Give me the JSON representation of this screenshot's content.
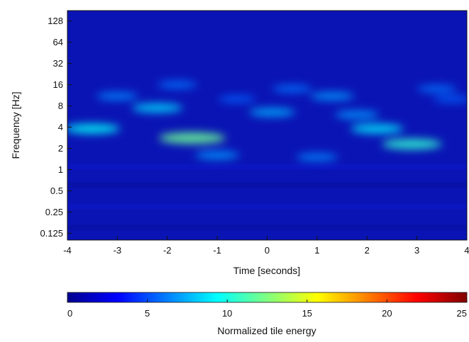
{
  "chart_data": {
    "type": "heatmap",
    "title": "",
    "xlabel": "Time [seconds]",
    "ylabel": "Frequency [Hz]",
    "xlim": [
      -4,
      4
    ],
    "ylim": [
      0.1,
      180
    ],
    "yscale": "log2",
    "x_ticks": [
      -4,
      -3,
      -2,
      -1,
      0,
      1,
      2,
      3,
      4
    ],
    "x_tick_labels": [
      "-4",
      "-3",
      "-2",
      "-1",
      "0",
      "1",
      "2",
      "3",
      "4"
    ],
    "y_ticks": [
      0.125,
      0.25,
      0.5,
      1,
      2,
      4,
      8,
      16,
      32,
      64,
      128
    ],
    "y_tick_labels": [
      "0.125",
      "0.25",
      "0.5",
      "1",
      "2",
      "4",
      "8",
      "16",
      "32",
      "64",
      "128"
    ],
    "background_energy": 0.6,
    "features": [
      {
        "t": -3.5,
        "f": 3.8,
        "energy": 6.5
      },
      {
        "t": -3.0,
        "f": 11,
        "energy": 3.5
      },
      {
        "t": -2.2,
        "f": 7.5,
        "energy": 5.5
      },
      {
        "t": -1.5,
        "f": 2.8,
        "energy": 9
      },
      {
        "t": -1.8,
        "f": 16,
        "energy": 3
      },
      {
        "t": -0.6,
        "f": 10,
        "energy": 2.5
      },
      {
        "t": 0.1,
        "f": 6.5,
        "energy": 4.5
      },
      {
        "t": 0.5,
        "f": 14,
        "energy": 3
      },
      {
        "t": 1.3,
        "f": 11,
        "energy": 4
      },
      {
        "t": 1.8,
        "f": 6,
        "energy": 4
      },
      {
        "t": 2.2,
        "f": 3.8,
        "energy": 6
      },
      {
        "t": 2.9,
        "f": 2.3,
        "energy": 7.5
      },
      {
        "t": 3.4,
        "f": 14,
        "energy": 3
      },
      {
        "t": 3.7,
        "f": 10,
        "energy": 2.5
      },
      {
        "t": -1.0,
        "f": 1.6,
        "energy": 4
      },
      {
        "t": 1.0,
        "f": 1.5,
        "energy": 3.5
      }
    ],
    "colorbar": {
      "label": "Normalized tile energy",
      "range": [
        0,
        25
      ],
      "ticks": [
        0,
        5,
        10,
        15,
        20,
        25
      ],
      "tick_labels": [
        "0",
        "5",
        "10",
        "15",
        "20",
        "25"
      ],
      "colormap": "jet"
    },
    "grid": false
  },
  "colors": {
    "heatmap_base": "#0a14b4",
    "axis": "#111111"
  }
}
